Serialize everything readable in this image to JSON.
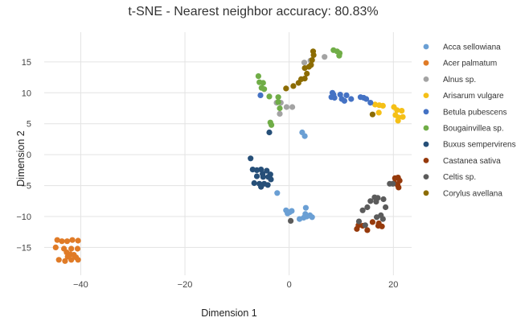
{
  "chart_data": {
    "type": "scatter",
    "title": "t-SNE - Nearest neighbor accuracy: 80.83%",
    "xlabel": "Dimension 1",
    "ylabel": "Dimension 2",
    "xlim": [
      -47,
      23.5
    ],
    "ylim": [
      -19.5,
      19.8
    ],
    "xticks": [
      -40,
      -20,
      0,
      20
    ],
    "yticks": [
      -15,
      -10,
      -5,
      0,
      5,
      10,
      15
    ],
    "grid": true,
    "legend_position": "right",
    "series": [
      {
        "name": "Acca sellowiana",
        "color": "#6a9fd4",
        "points": [
          [
            3.0,
            3.0
          ],
          [
            2.5,
            3.6
          ],
          [
            -2.3,
            -6.2
          ],
          [
            -0.6,
            -9.0
          ],
          [
            0.1,
            -9.3
          ],
          [
            0.5,
            -9.1
          ],
          [
            -0.3,
            -9.5
          ],
          [
            3.2,
            -8.6
          ],
          [
            4.0,
            -9.8
          ],
          [
            2.8,
            -10.2
          ],
          [
            3.4,
            -10.0
          ],
          [
            4.4,
            -10.1
          ],
          [
            2.0,
            -10.4
          ],
          [
            3.1,
            -9.6
          ]
        ]
      },
      {
        "name": "Acer palmatum",
        "color": "#e07b27",
        "points": [
          [
            -44.5,
            -13.8
          ],
          [
            -43.6,
            -14.0
          ],
          [
            -42.6,
            -14.0
          ],
          [
            -41.6,
            -13.8
          ],
          [
            -40.5,
            -13.9
          ],
          [
            -44.8,
            -15.0
          ],
          [
            -43.2,
            -15.2
          ],
          [
            -41.8,
            -15.2
          ],
          [
            -40.6,
            -15.2
          ],
          [
            -42.7,
            -15.8
          ],
          [
            -42.0,
            -16.1
          ],
          [
            -41.3,
            -16.2
          ],
          [
            -42.5,
            -16.5
          ],
          [
            -40.9,
            -16.6
          ],
          [
            -44.2,
            -17.0
          ],
          [
            -43.0,
            -17.2
          ],
          [
            -41.8,
            -17.0
          ],
          [
            -40.5,
            -17.0
          ]
        ]
      },
      {
        "name": "Alnus sp.",
        "color": "#a3a3a3",
        "points": [
          [
            -2.4,
            8.4
          ],
          [
            -1.6,
            8.4
          ],
          [
            -0.5,
            7.7
          ],
          [
            0.6,
            7.7
          ],
          [
            -1.8,
            6.6
          ],
          [
            2.9,
            14.9
          ],
          [
            4.1,
            15.2
          ],
          [
            6.8,
            15.8
          ]
        ]
      },
      {
        "name": "Arisarum vulgare",
        "color": "#f5c017",
        "points": [
          [
            16.5,
            8.1
          ],
          [
            17.3,
            8.0
          ],
          [
            18.0,
            7.9
          ],
          [
            17.2,
            6.8
          ],
          [
            20.1,
            7.7
          ],
          [
            20.7,
            7.2
          ],
          [
            21.6,
            7.1
          ],
          [
            20.4,
            6.4
          ],
          [
            21.0,
            6.0
          ],
          [
            21.8,
            6.1
          ],
          [
            20.9,
            5.5
          ]
        ]
      },
      {
        "name": "Betula pubescens",
        "color": "#4472c4",
        "points": [
          [
            -5.5,
            9.6
          ],
          [
            8.3,
            10.0
          ],
          [
            8.5,
            9.7
          ],
          [
            8.1,
            9.3
          ],
          [
            8.7,
            9.2
          ],
          [
            9.8,
            9.7
          ],
          [
            11.0,
            9.6
          ],
          [
            10.1,
            9.0
          ],
          [
            10.6,
            8.7
          ],
          [
            11.9,
            9.0
          ],
          [
            13.7,
            9.3
          ],
          [
            14.3,
            9.2
          ],
          [
            14.8,
            9.0
          ],
          [
            15.6,
            8.4
          ]
        ]
      },
      {
        "name": "Bougainvillea sp.",
        "color": "#70ad47",
        "points": [
          [
            -5.9,
            12.7
          ],
          [
            -5.7,
            11.7
          ],
          [
            -5.0,
            11.6
          ],
          [
            -5.3,
            10.8
          ],
          [
            -4.8,
            10.6
          ],
          [
            -3.8,
            9.4
          ],
          [
            -2.1,
            9.3
          ],
          [
            -2.1,
            8.5
          ],
          [
            -1.8,
            7.5
          ],
          [
            -3.6,
            5.2
          ],
          [
            -3.4,
            4.8
          ],
          [
            8.5,
            16.9
          ],
          [
            9.2,
            16.7
          ],
          [
            9.7,
            16.4
          ],
          [
            9.6,
            16.0
          ]
        ]
      },
      {
        "name": "Buxus sempervirens",
        "color": "#264f78",
        "points": [
          [
            -7.4,
            -0.6
          ],
          [
            -7.0,
            -2.4
          ],
          [
            -6.2,
            -2.5
          ],
          [
            -5.4,
            -2.4
          ],
          [
            -4.3,
            -2.6
          ],
          [
            -5.1,
            -3.1
          ],
          [
            -3.6,
            -3.2
          ],
          [
            -6.2,
            -3.5
          ],
          [
            -5.0,
            -3.6
          ],
          [
            -4.0,
            -3.6
          ],
          [
            -3.5,
            -4.0
          ],
          [
            -6.7,
            -4.6
          ],
          [
            -5.7,
            -4.7
          ],
          [
            -4.8,
            -4.7
          ],
          [
            -4.1,
            -4.9
          ],
          [
            -5.4,
            -5.2
          ],
          [
            -3.8,
            3.6
          ]
        ]
      },
      {
        "name": "Castanea sativa",
        "color": "#963a0c",
        "points": [
          [
            20.3,
            -3.8
          ],
          [
            20.9,
            -3.7
          ],
          [
            21.2,
            -4.2
          ],
          [
            20.2,
            -4.6
          ],
          [
            20.8,
            -4.9
          ],
          [
            21.0,
            -5.3
          ],
          [
            16.0,
            -10.9
          ],
          [
            17.2,
            -11.1
          ],
          [
            17.1,
            -11.5
          ],
          [
            17.8,
            -11.6
          ],
          [
            13.3,
            -11.4
          ],
          [
            14.1,
            -11.5
          ],
          [
            13.0,
            -12.0
          ],
          [
            15.0,
            -12.2
          ]
        ]
      },
      {
        "name": "Celtis sp.",
        "color": "#5b5b5b",
        "points": [
          [
            0.3,
            -10.7
          ],
          [
            16.4,
            -6.9
          ],
          [
            17.0,
            -7.0
          ],
          [
            15.6,
            -7.5
          ],
          [
            16.7,
            -7.6
          ],
          [
            18.1,
            -7.2
          ],
          [
            15.0,
            -8.5
          ],
          [
            14.1,
            -9.0
          ],
          [
            18.5,
            -8.5
          ],
          [
            16.8,
            -10.1
          ],
          [
            17.6,
            -9.8
          ],
          [
            18.0,
            -10.4
          ],
          [
            13.4,
            -10.8
          ],
          [
            14.6,
            -11.4
          ],
          [
            19.3,
            -4.7
          ],
          [
            19.9,
            -4.7
          ]
        ]
      },
      {
        "name": "Corylus avellana",
        "color": "#8c6c02",
        "points": [
          [
            -0.6,
            10.7
          ],
          [
            0.8,
            11.1
          ],
          [
            1.8,
            11.6
          ],
          [
            2.3,
            12.2
          ],
          [
            3.0,
            12.3
          ],
          [
            3.4,
            13.1
          ],
          [
            3.0,
            14.0
          ],
          [
            3.8,
            14.2
          ],
          [
            4.2,
            14.5
          ],
          [
            4.4,
            15.3
          ],
          [
            4.7,
            16.1
          ],
          [
            4.6,
            16.7
          ],
          [
            16.0,
            6.5
          ]
        ]
      }
    ]
  }
}
